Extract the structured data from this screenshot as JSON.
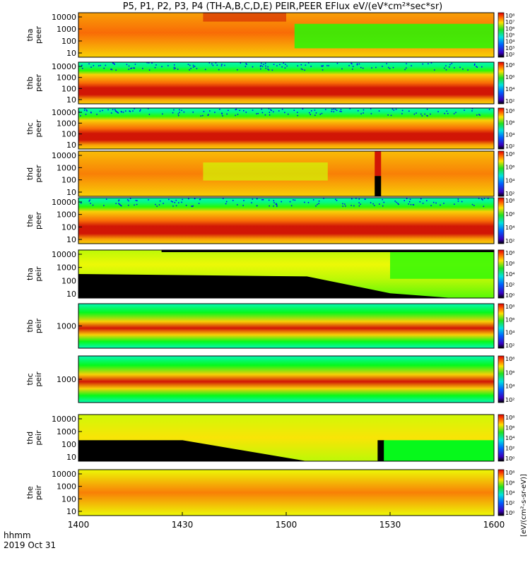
{
  "title": "P5, P1, P2, P3, P4 (TH-A,B,C,D,E) PEIR,PEER EFlux eV/(eV*cm²*sec*sr)",
  "colorbar_label": "[eV/(cm²-s-sr-eV)]",
  "time_axis": {
    "corner_label": "hhmm",
    "date_label": "2019 Oct 31",
    "ticks": [
      "1400",
      "1430",
      "1500",
      "1530",
      "1600"
    ]
  },
  "chart_data": {
    "type": "heatmap",
    "x_range": [
      "1400",
      "1600"
    ],
    "panels": [
      {
        "probe": "tha",
        "product": "peer",
        "y_ticks": [
          "10000",
          "1000",
          "100",
          "10"
        ],
        "cb_ticks": [
          "10⁸",
          "10⁷",
          "10⁶",
          "10⁵",
          "10⁴",
          "10³",
          "10²"
        ],
        "pattern": "tha-peer"
      },
      {
        "probe": "thb",
        "product": "peer",
        "y_ticks": [
          "10000",
          "1000",
          "100",
          "10"
        ],
        "cb_ticks": [
          "10⁸",
          "10⁶",
          "10⁴",
          "10²"
        ],
        "pattern": "band-peer"
      },
      {
        "probe": "thc",
        "product": "peer",
        "y_ticks": [
          "10000",
          "1000",
          "100",
          "10"
        ],
        "cb_ticks": [
          "10⁸",
          "10⁶",
          "10⁴",
          "10²"
        ],
        "pattern": "band-peer"
      },
      {
        "probe": "thd",
        "product": "peer",
        "y_ticks": [
          "10000",
          "1000",
          "100",
          "10"
        ],
        "cb_ticks": [
          "10⁸",
          "10⁶",
          "10⁴",
          "10²"
        ],
        "pattern": "thd-peer"
      },
      {
        "probe": "the",
        "product": "peer",
        "y_ticks": [
          "10000",
          "1000",
          "100",
          "10"
        ],
        "cb_ticks": [
          "10⁸",
          "10⁶",
          "10⁴",
          "10²"
        ],
        "pattern": "band-peer"
      },
      {
        "probe": "tha",
        "product": "peir",
        "y_ticks": [
          "10000",
          "1000",
          "100",
          "10"
        ],
        "cb_ticks": [
          "10⁸",
          "10⁶",
          "10⁴",
          "10²",
          "10⁰"
        ],
        "pattern": "ion-black"
      },
      {
        "probe": "thb",
        "product": "peir",
        "y_ticks": [
          "1000"
        ],
        "cb_ticks": [
          "10⁸",
          "10⁶",
          "10⁴",
          "10²"
        ],
        "pattern": "ion-band"
      },
      {
        "probe": "thc",
        "product": "peir",
        "y_ticks": [
          "1000"
        ],
        "cb_ticks": [
          "10⁸",
          "10⁶",
          "10⁴",
          "10²"
        ],
        "pattern": "ion-band"
      },
      {
        "probe": "thd",
        "product": "peir",
        "y_ticks": [
          "10000",
          "1000",
          "100",
          "10"
        ],
        "cb_ticks": [
          "10⁸",
          "10⁶",
          "10⁴",
          "10²",
          "10⁰"
        ],
        "pattern": "thd-peir"
      },
      {
        "probe": "the",
        "product": "peir",
        "y_ticks": [
          "10000",
          "1000",
          "100",
          "10"
        ],
        "cb_ticks": [
          "10⁸",
          "10⁶",
          "10⁴",
          "10²",
          "10⁰"
        ],
        "pattern": "the-peir"
      }
    ]
  }
}
